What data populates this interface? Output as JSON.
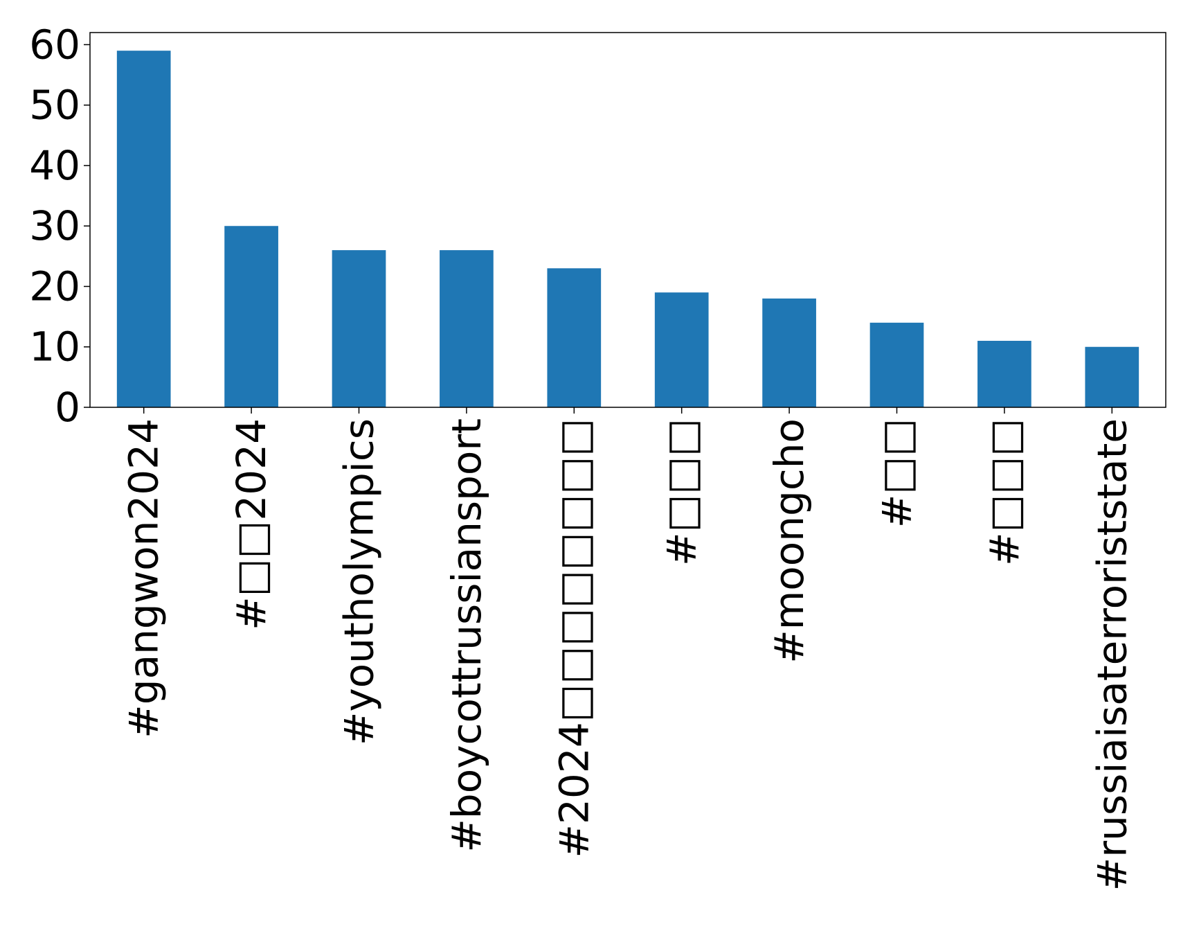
{
  "chart_data": {
    "type": "bar",
    "categories": [
      "#gangwon2024",
      "#□□2024",
      "#youtholympics",
      "#boycottrussiansport",
      "#2024□□□□□□□□",
      "#□□□",
      "#moongcho",
      "#□□",
      "#□□□",
      "#russiaisaterroriststate"
    ],
    "values": [
      59,
      30,
      26,
      26,
      23,
      19,
      18,
      14,
      11,
      10
    ],
    "ylim": [
      0,
      62
    ],
    "yticks": [
      0,
      10,
      20,
      30,
      40,
      50,
      60
    ],
    "bar_color": "#1f77b4",
    "grid": false,
    "title": "",
    "xlabel": "",
    "ylabel": ""
  }
}
